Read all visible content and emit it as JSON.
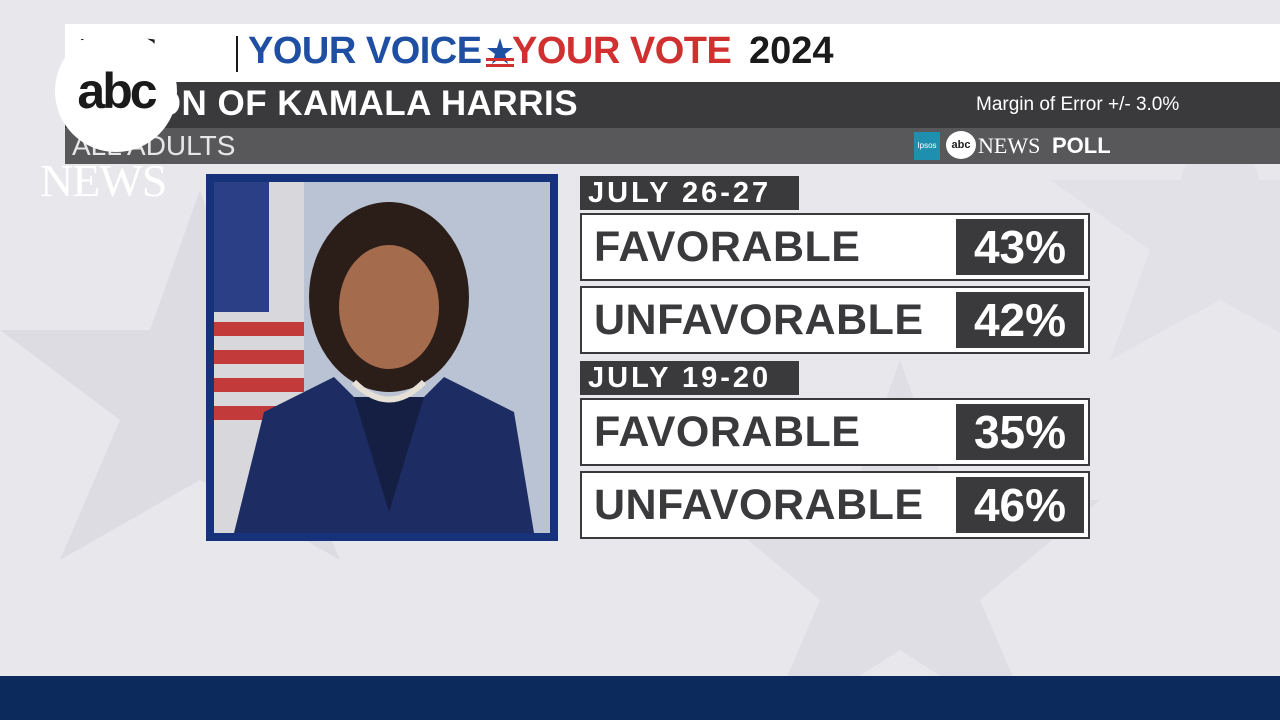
{
  "header": {
    "news_fragment": "EWS",
    "your_voice": "YOUR VOICE",
    "your_vote": "YOUR VOTE",
    "year": "2024"
  },
  "title": "IMPRESSION OF KAMALA HARRIS",
  "title_visible": "ESSION OF KAMALA HARRIS",
  "subtitle": "ALL ADULTS",
  "margin_of_error": "Margin of Error  +/- 3.0%",
  "poll_source": {
    "ipsos": "Ipsos",
    "abc": "abc",
    "news": "NEWS",
    "poll": "POLL"
  },
  "logo": {
    "abc": "abc",
    "news": "NEWS"
  },
  "colors": {
    "header_blue": "#1f4fa3",
    "header_red": "#d03030",
    "bar_dark": "#3a3a3c",
    "portrait_frame": "#15327a",
    "bottom_bar": "#0d2a5c"
  },
  "chart_data": {
    "type": "table",
    "title": "IMPRESSION OF KAMALA HARRIS",
    "subtitle": "ALL ADULTS",
    "groups": [
      {
        "period": "JULY 26-27",
        "rows": [
          {
            "label": "FAVORABLE",
            "value": 43,
            "display": "43%"
          },
          {
            "label": "UNFAVORABLE",
            "value": 42,
            "display": "42%"
          }
        ]
      },
      {
        "period": "JULY 19-20",
        "rows": [
          {
            "label": "FAVORABLE",
            "value": 35,
            "display": "35%"
          },
          {
            "label": "UNFAVORABLE",
            "value": 46,
            "display": "46%"
          }
        ]
      }
    ]
  }
}
